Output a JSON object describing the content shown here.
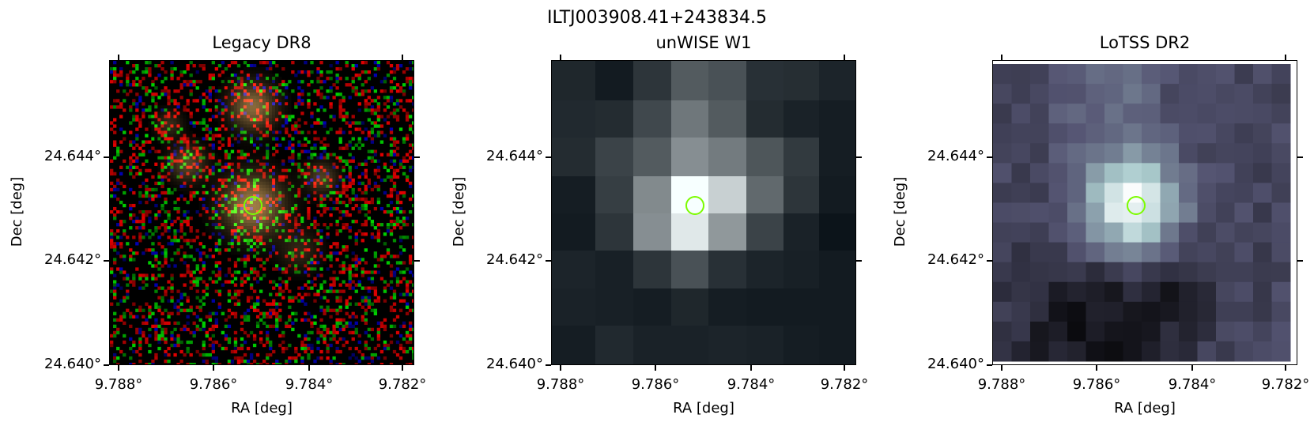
{
  "figure": {
    "suptitle": "ILTJ003908.41+243834.5",
    "marker_color": "#7CFC00",
    "axes": {
      "xlabel": "RA [deg]",
      "ylabel": "Dec [deg]",
      "xticks": [
        "9.788°",
        "9.786°",
        "9.784°",
        "9.782°"
      ],
      "yticks": [
        "24.644°",
        "24.642°",
        "24.640°"
      ]
    },
    "panels": [
      {
        "title": "Legacy DR8",
        "kind": "optical-rgb-noise"
      },
      {
        "title": "unWISE W1",
        "kind": "infrared-grayscale"
      },
      {
        "title": "LoTSS DR2",
        "kind": "radio-bone"
      }
    ]
  }
}
